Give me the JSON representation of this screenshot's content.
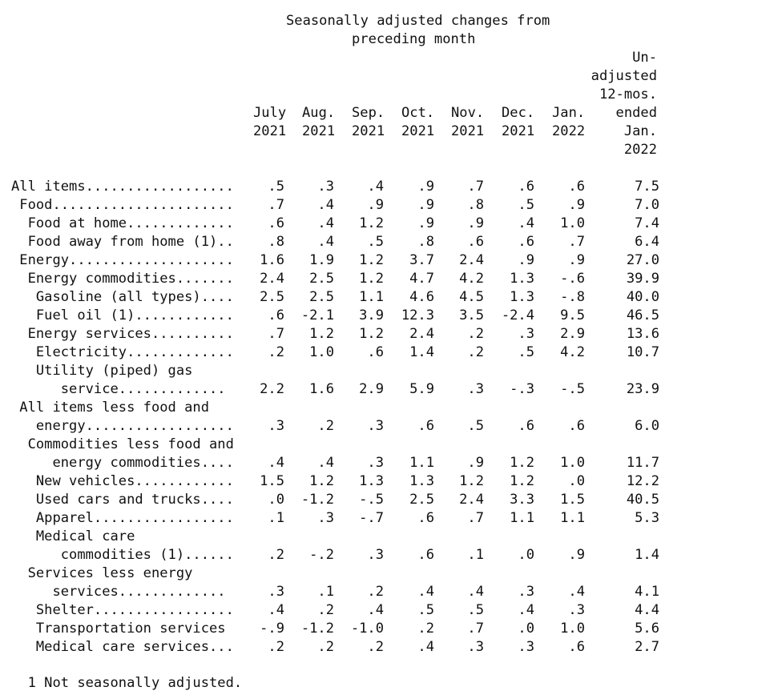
{
  "header": {
    "group_title_lines": [
      "Seasonally adjusted changes from",
      "preceding month"
    ],
    "unadjusted_lines": [
      "Un-",
      "adjusted",
      "12-mos.",
      "ended",
      "Jan.",
      "2022"
    ]
  },
  "columns": [
    {
      "month": "July",
      "year": "2021"
    },
    {
      "month": "Aug.",
      "year": "2021"
    },
    {
      "month": "Sep.",
      "year": "2021"
    },
    {
      "month": "Oct.",
      "year": "2021"
    },
    {
      "month": "Nov.",
      "year": "2021"
    },
    {
      "month": "Dec.",
      "year": "2021"
    },
    {
      "month": "Jan.",
      "year": "2022"
    }
  ],
  "rows": [
    {
      "label": "All items..................",
      "values": [
        ".5",
        ".3",
        ".4",
        ".9",
        ".7",
        ".6",
        ".6",
        "7.5"
      ]
    },
    {
      "label": " Food......................",
      "values": [
        ".7",
        ".4",
        ".9",
        ".9",
        ".8",
        ".5",
        ".9",
        "7.0"
      ]
    },
    {
      "label": "  Food at home.............",
      "values": [
        ".6",
        ".4",
        "1.2",
        ".9",
        ".9",
        ".4",
        "1.0",
        "7.4"
      ]
    },
    {
      "label": "  Food away from home (1)..",
      "values": [
        ".8",
        ".4",
        ".5",
        ".8",
        ".6",
        ".6",
        ".7",
        "6.4"
      ]
    },
    {
      "label": " Energy....................",
      "values": [
        "1.6",
        "1.9",
        "1.2",
        "3.7",
        "2.4",
        ".9",
        ".9",
        "27.0"
      ]
    },
    {
      "label": "  Energy commodities.......",
      "values": [
        "2.4",
        "2.5",
        "1.2",
        "4.7",
        "4.2",
        "1.3",
        "-.6",
        "39.9"
      ]
    },
    {
      "label": "   Gasoline (all types)....",
      "values": [
        "2.5",
        "2.5",
        "1.1",
        "4.6",
        "4.5",
        "1.3",
        "-.8",
        "40.0"
      ]
    },
    {
      "label": "   Fuel oil (1)............",
      "values": [
        ".6",
        "-2.1",
        "3.9",
        "12.3",
        "3.5",
        "-2.4",
        "9.5",
        "46.5"
      ]
    },
    {
      "label": "  Energy services..........",
      "values": [
        ".7",
        "1.2",
        "1.2",
        "2.4",
        ".2",
        ".3",
        "2.9",
        "13.6"
      ]
    },
    {
      "label": "   Electricity.............",
      "values": [
        ".2",
        "1.0",
        ".6",
        "1.4",
        ".2",
        ".5",
        "4.2",
        "10.7"
      ]
    },
    {
      "label": "   Utility (piped) gas",
      "values": []
    },
    {
      "label": "      service.............",
      "values": [
        "2.2",
        "1.6",
        "2.9",
        "5.9",
        ".3",
        "-.3",
        "-.5",
        "23.9"
      ]
    },
    {
      "label": " All items less food and",
      "values": []
    },
    {
      "label": "   energy..................",
      "values": [
        ".3",
        ".2",
        ".3",
        ".6",
        ".5",
        ".6",
        ".6",
        "6.0"
      ]
    },
    {
      "label": "  Commodities less food and",
      "values": []
    },
    {
      "label": "     energy commodities....",
      "values": [
        ".4",
        ".4",
        ".3",
        "1.1",
        ".9",
        "1.2",
        "1.0",
        "11.7"
      ]
    },
    {
      "label": "   New vehicles............",
      "values": [
        "1.5",
        "1.2",
        "1.3",
        "1.3",
        "1.2",
        "1.2",
        ".0",
        "12.2"
      ]
    },
    {
      "label": "   Used cars and trucks....",
      "values": [
        ".0",
        "-1.2",
        "-.5",
        "2.5",
        "2.4",
        "3.3",
        "1.5",
        "40.5"
      ]
    },
    {
      "label": "   Apparel.................",
      "values": [
        ".1",
        ".3",
        "-.7",
        ".6",
        ".7",
        "1.1",
        "1.1",
        "5.3"
      ]
    },
    {
      "label": "   Medical care",
      "values": []
    },
    {
      "label": "      commodities (1)......",
      "values": [
        ".2",
        "-.2",
        ".3",
        ".6",
        ".1",
        ".0",
        ".9",
        "1.4"
      ]
    },
    {
      "label": "  Services less energy",
      "values": []
    },
    {
      "label": "     services.............",
      "values": [
        ".3",
        ".1",
        ".2",
        ".4",
        ".4",
        ".3",
        ".4",
        "4.1"
      ]
    },
    {
      "label": "   Shelter.................",
      "values": [
        ".4",
        ".2",
        ".4",
        ".5",
        ".5",
        ".4",
        ".3",
        "4.4"
      ]
    },
    {
      "label": "   Transportation services",
      "values": [
        "-.9",
        "-1.2",
        "-1.0",
        ".2",
        ".7",
        ".0",
        "1.0",
        "5.6"
      ]
    },
    {
      "label": "   Medical care services...",
      "values": [
        ".2",
        ".2",
        ".2",
        ".4",
        ".3",
        ".3",
        ".6",
        "2.7"
      ]
    }
  ],
  "footnote": "  1 Not seasonally adjusted."
}
